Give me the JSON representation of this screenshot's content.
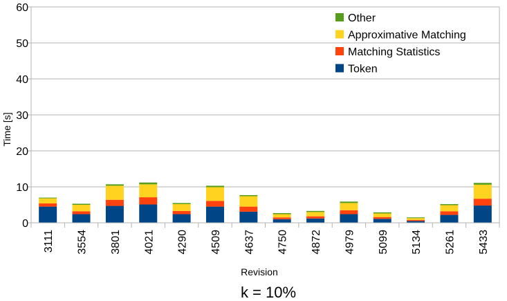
{
  "chart_data": {
    "type": "bar",
    "stacked": true,
    "categories": [
      "3111",
      "3554",
      "3801",
      "4021",
      "4290",
      "4509",
      "4637",
      "4750",
      "4872",
      "4979",
      "5099",
      "5134",
      "5261",
      "5433"
    ],
    "series": [
      {
        "name": "Token",
        "color": "#004586",
        "values": [
          4.5,
          2.4,
          4.7,
          5.1,
          2.4,
          4.5,
          3.1,
          1.0,
          1.2,
          2.4,
          1.1,
          0.5,
          2.2,
          4.8
        ]
      },
      {
        "name": "Matching Statistics",
        "color": "#ff420e",
        "values": [
          0.9,
          0.8,
          1.7,
          2.0,
          0.9,
          1.6,
          1.4,
          0.5,
          0.6,
          1.1,
          0.5,
          0.3,
          1.0,
          1.9
        ]
      },
      {
        "name": "Approximative Matching",
        "color": "#ffd320",
        "values": [
          1.4,
          1.8,
          3.9,
          3.6,
          1.9,
          3.8,
          2.9,
          0.9,
          1.2,
          2.0,
          1.0,
          0.5,
          1.7,
          3.9
        ]
      },
      {
        "name": "Other",
        "color": "#579d1c",
        "values": [
          0.2,
          0.3,
          0.4,
          0.5,
          0.3,
          0.4,
          0.3,
          0.3,
          0.3,
          0.4,
          0.3,
          0.2,
          0.3,
          0.5
        ]
      }
    ],
    "legend_order": [
      "Other",
      "Approximative Matching",
      "Matching Statistics",
      "Token"
    ],
    "ylim": [
      0,
      60
    ],
    "yticks": [
      "0",
      "10",
      "20",
      "30",
      "40",
      "50",
      "60"
    ],
    "xlabel": "Revision",
    "ylabel": "Time [s]",
    "caption": "k = 10%",
    "grid": "horizontal",
    "legend_position": "top-right",
    "grid_color": "#b3b3b3"
  }
}
